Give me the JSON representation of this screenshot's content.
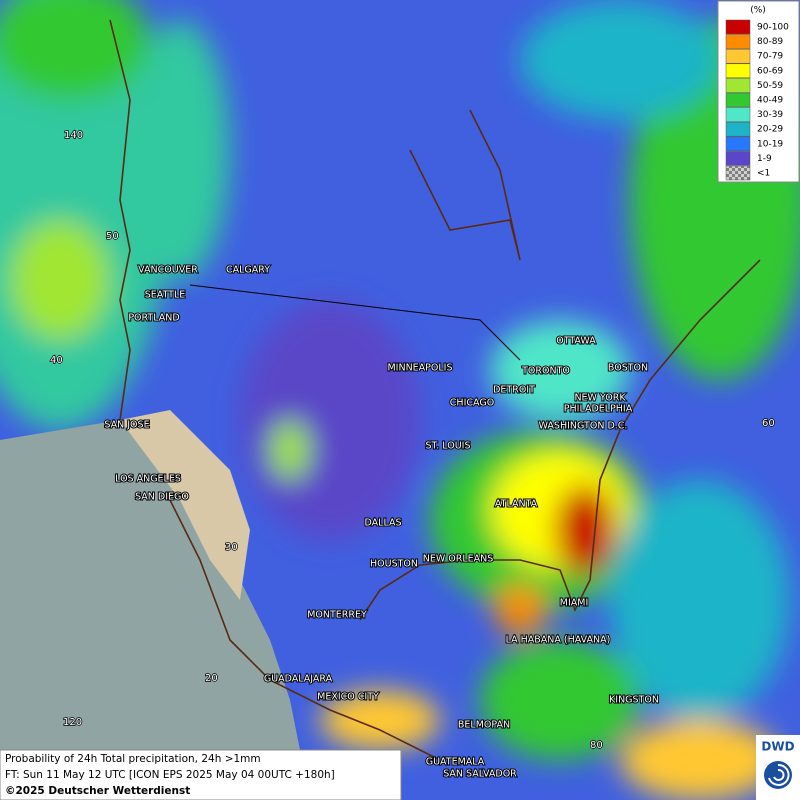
{
  "legend": {
    "title": "(%)",
    "items": [
      {
        "label": "90-100",
        "color": "#c80000"
      },
      {
        "label": "80-89",
        "color": "#ff8c00"
      },
      {
        "label": "70-79",
        "color": "#ffc832"
      },
      {
        "label": "60-69",
        "color": "#ffff00"
      },
      {
        "label": "50-59",
        "color": "#a0e632"
      },
      {
        "label": "40-49",
        "color": "#32c832"
      },
      {
        "label": "30-39",
        "color": "#50e6c8"
      },
      {
        "label": "20-29",
        "color": "#1eb4c8"
      },
      {
        "label": "10-19",
        "color": "#2878ff"
      },
      {
        "label": "1-9",
        "color": "#5a46c8"
      },
      {
        "label": "<1",
        "color": "#a0a0a0"
      }
    ]
  },
  "cities": [
    "VANCOUVER",
    "CALGARY",
    "SEATTLE",
    "PORTLAND",
    "SAN JOSE",
    "LOS ANGELES",
    "SAN DIEGO",
    "MINNEAPOLIS",
    "TORONTO",
    "OTTAWA",
    "BOSTON",
    "DETROIT",
    "CHICAGO",
    "NEW YORK",
    "PHILADELPHIA",
    "WASHINGTON D.C.",
    "ST. LOUIS",
    "ATLANTA",
    "DALLAS",
    "HOUSTON",
    "NEW ORLEANS",
    "MONTERREY",
    "MIAMI",
    "LA HABANA (HAVANA)",
    "GUADALAJARA",
    "MEXICO CITY",
    "KINGSTON",
    "BELMOPAN",
    "GUATEMALA",
    "SAN SALVADOR"
  ],
  "grid_labels": [
    "140",
    "50",
    "40",
    "30",
    "20",
    "120",
    "60",
    "80"
  ],
  "footer": [
    "Probability of 24h Total precipitation, 24h >1mm",
    "FT: Sun 11 May 12 UTC [ICON EPS 2025 May 04 00UTC +180h]",
    "©2025 Deutscher Wetterdienst"
  ],
  "logo": "DWD"
}
